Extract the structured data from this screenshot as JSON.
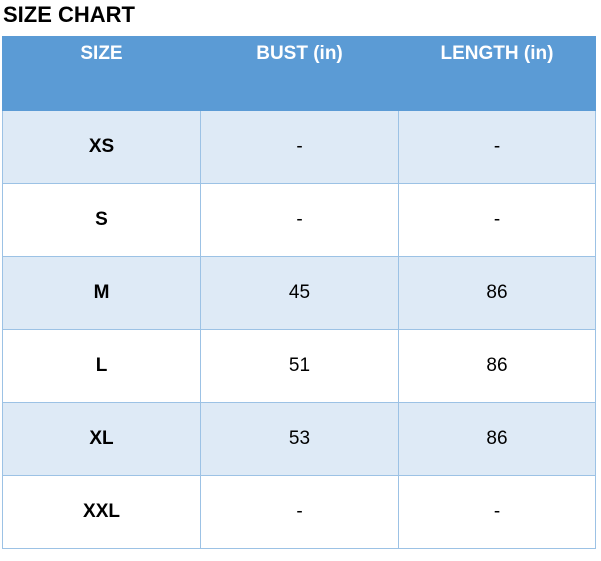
{
  "title": "SIZE CHART",
  "colors": {
    "header_bg": "#5b9bd5",
    "band_row_bg": "#deeaf6",
    "plain_row_bg": "#ffffff",
    "border": "#9cc2e5",
    "header_text": "#ffffff",
    "body_text": "#000000"
  },
  "chart_data": {
    "type": "table",
    "title": "SIZE CHART",
    "columns": [
      "SIZE",
      "BUST (in)",
      "LENGTH (in)"
    ],
    "rows": [
      [
        "XS",
        "-",
        "-"
      ],
      [
        "S",
        "-",
        "-"
      ],
      [
        "M",
        "45",
        "86"
      ],
      [
        "L",
        "51",
        "86"
      ],
      [
        "XL",
        "53",
        "86"
      ],
      [
        "XXL",
        "-",
        "-"
      ]
    ]
  }
}
